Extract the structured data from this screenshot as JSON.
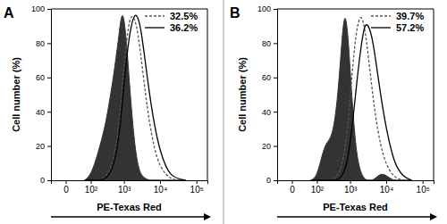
{
  "chart_data": [
    {
      "type": "area",
      "title": "A",
      "x_label": "PE-Texas Red",
      "y_label": "Cell number (%)",
      "log": "x",
      "grid": false,
      "legend": "top-right",
      "xlim": [
        -40,
        200000
      ],
      "xticks": [
        0,
        {
          "value": 100,
          "label": "10²"
        },
        {
          "value": 1000,
          "label": "10³"
        },
        {
          "value": 10000,
          "label": "10⁴"
        },
        {
          "value": 100000,
          "label": "10⁵"
        }
      ],
      "ylim": [
        0,
        100
      ],
      "yticks": [
        0,
        20,
        40,
        60,
        80,
        100
      ],
      "x": [
        60,
        100,
        150,
        200,
        300,
        400,
        500,
        600,
        700,
        800,
        900,
        1000,
        1200,
        1500,
        2000,
        2500,
        3000,
        4000,
        5000,
        7000,
        10000,
        15000,
        20000,
        30000,
        50000
      ],
      "series": [
        {
          "type": "area",
          "color": "#333333",
          "line_style": "solid",
          "values": [
            0,
            3,
            12,
            20,
            33,
            48,
            60,
            72,
            82,
            93,
            97,
            95,
            80,
            50,
            20,
            8,
            3,
            1,
            0,
            0,
            0,
            0,
            0,
            0,
            0
          ]
        },
        {
          "name": "32.5%",
          "type": "line",
          "color": "#555555",
          "line_style": "dashed",
          "values": [
            0,
            0,
            0,
            0,
            2,
            6,
            12,
            20,
            30,
            42,
            55,
            65,
            82,
            97,
            95,
            85,
            72,
            50,
            35,
            18,
            8,
            3,
            1,
            0,
            0
          ]
        },
        {
          "name": "36.2%",
          "type": "line",
          "color": "#000000",
          "line_style": "solid",
          "values": [
            0,
            0,
            0,
            0,
            1,
            4,
            9,
            15,
            24,
            34,
            45,
            55,
            72,
            88,
            98,
            95,
            88,
            68,
            52,
            32,
            17,
            7,
            3,
            1,
            0
          ]
        }
      ]
    },
    {
      "type": "area",
      "title": "B",
      "x_label": "PE-Texas Red",
      "y_label": "Cell number (%)",
      "log": "x",
      "grid": false,
      "legend": "top-right",
      "xlim": [
        -40,
        200000
      ],
      "xticks": [
        0,
        {
          "value": 100,
          "label": "10²"
        },
        {
          "value": 1000,
          "label": "10³"
        },
        {
          "value": 10000,
          "label": "10⁴"
        },
        {
          "value": 100000,
          "label": "10⁵"
        }
      ],
      "ylim": [
        0,
        100
      ],
      "yticks": [
        0,
        20,
        40,
        60,
        80,
        100
      ],
      "x": [
        60,
        100,
        150,
        200,
        300,
        400,
        500,
        600,
        700,
        800,
        900,
        1000,
        1200,
        1500,
        2000,
        2500,
        3000,
        4000,
        5000,
        7000,
        10000,
        15000,
        20000,
        30000,
        50000
      ],
      "series": [
        {
          "type": "area",
          "color": "#333333",
          "line_style": "solid",
          "values": [
            0,
            2,
            15,
            22,
            25,
            40,
            62,
            85,
            97,
            92,
            80,
            65,
            40,
            15,
            4,
            1,
            0,
            0,
            1,
            4,
            3,
            0,
            0,
            0,
            0
          ]
        },
        {
          "name": "39.7%",
          "type": "line",
          "color": "#555555",
          "line_style": "dashed",
          "values": [
            0,
            0,
            0,
            0,
            0,
            2,
            5,
            10,
            17,
            26,
            36,
            48,
            68,
            88,
            98,
            90,
            78,
            55,
            38,
            20,
            9,
            3,
            1,
            0,
            0
          ]
        },
        {
          "name": "57.2%",
          "type": "line",
          "color": "#000000",
          "line_style": "solid",
          "values": [
            0,
            0,
            0,
            0,
            0,
            0,
            1,
            3,
            6,
            10,
            15,
            22,
            35,
            55,
            78,
            90,
            92,
            85,
            72,
            50,
            30,
            14,
            7,
            2,
            0
          ]
        }
      ]
    }
  ]
}
